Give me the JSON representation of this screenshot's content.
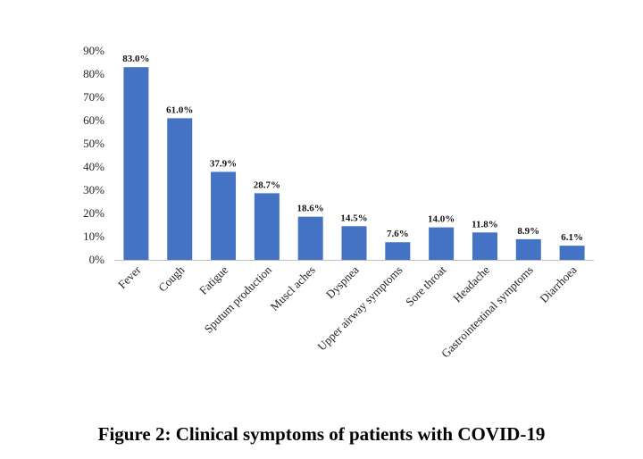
{
  "chart_data": {
    "type": "bar",
    "title": "Figure 2: Clinical symptoms of patients with COVID-19",
    "xlabel": "",
    "ylabel": "",
    "ylim": [
      0,
      90
    ],
    "yticks": [
      "0%",
      "10%",
      "20%",
      "30%",
      "40%",
      "50%",
      "60%",
      "70%",
      "80%",
      "90%"
    ],
    "categories": [
      "Fever",
      "Cough",
      "Fatigue",
      "Sputum production",
      "Muscl aches",
      "Dyspnea",
      "Upper airway symptoms",
      "Sore throat",
      "Headache",
      "Gastrointestinal symptoms",
      "Diarrhoea"
    ],
    "values": [
      83.0,
      61.0,
      37.9,
      28.7,
      18.6,
      14.5,
      7.6,
      14.0,
      11.8,
      8.9,
      6.1
    ],
    "data_labels": [
      "83.0%",
      "61.0%",
      "37.9%",
      "28.7%",
      "18.6%",
      "14.5%",
      "7.6%",
      "14.0%",
      "11.8%",
      "8.9%",
      "6.1%"
    ],
    "bar_color": "#4472c4",
    "grid": false,
    "legend": "none"
  }
}
